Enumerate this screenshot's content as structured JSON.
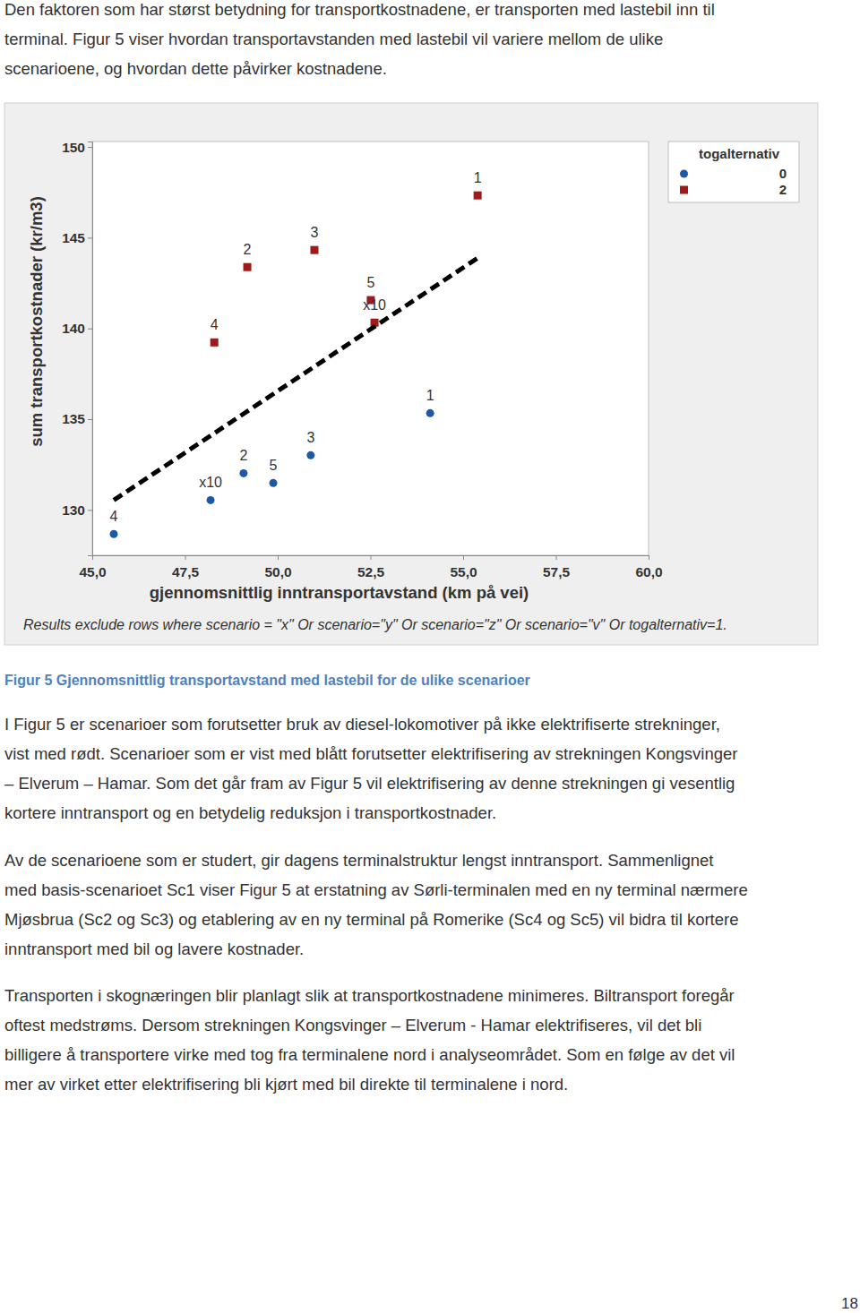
{
  "intro": {
    "lines": [
      "Den faktoren som har størst betydning for transportkostnadene, er transporten med lastebil inn til",
      "terminal. Figur 5 viser hvordan transportavstanden med lastebil vil variere mellom de ulike",
      "scenarioene, og hvordan dette påvirker kostnadene."
    ]
  },
  "chart_data": {
    "type": "scatter",
    "x_label": "gjennomsnittlig inntransportavstand (km på vei)",
    "y_label": "sum transportkostnader (kr/m3)",
    "note": "Results exclude rows where scenario = \"x\" Or scenario=\"y\" Or scenario=\"z\" Or scenario=\"v\" Or togalternativ=1.",
    "legend_title": "togalternativ",
    "legend": "top-right",
    "grid": false,
    "xlim": [
      45,
      60
    ],
    "xticks": [
      {
        "value": 45,
        "label": "45,0"
      },
      {
        "value": 47.5,
        "label": "47,5"
      },
      {
        "value": 50,
        "label": "50,0"
      },
      {
        "value": 52.5,
        "label": "52,5"
      },
      {
        "value": 55,
        "label": "55,0"
      },
      {
        "value": 57.5,
        "label": "57,5"
      },
      {
        "value": 60,
        "label": "60,0"
      }
    ],
    "ylim": [
      127.5,
      150.3
    ],
    "yticks": [
      130,
      135,
      140,
      145,
      150
    ],
    "series": [
      {
        "name": "0",
        "color": "#1d5aa3",
        "marker": "circle",
        "x": [
          45.58,
          48.19,
          49.08,
          49.88,
          50.89,
          54.11
        ],
        "values": [
          128.67,
          130.54,
          132.02,
          131.48,
          133.01,
          135.33
        ],
        "point_labels": [
          "4",
          "x10",
          "2",
          "5",
          "3",
          "1"
        ]
      },
      {
        "name": "2",
        "color": "#9e1b1b",
        "marker": "square",
        "x": [
          48.29,
          49.18,
          50.99,
          52.51,
          52.61,
          55.39
        ],
        "values": [
          139.23,
          143.38,
          144.32,
          141.56,
          140.32,
          147.33
        ],
        "point_labels": [
          "4",
          "2",
          "3",
          "5",
          "x10",
          "1"
        ]
      },
      {
        "type": "line",
        "line_style": "dashed",
        "color": "#000000",
        "x": [
          45.58,
          55.39
        ],
        "values": [
          130.54,
          143.88
        ]
      }
    ]
  },
  "caption": "Figur 5 Gjennomsnittlig transportavstand med lastebil for de ulike scenarioer",
  "body": [
    [
      "I Figur 5 er scenarioer som forutsetter bruk av diesel-lokomotiver på ikke elektrifiserte strekninger,",
      "vist med rødt. Scenarioer som er vist med blått forutsetter elektrifisering av strekningen Kongsvinger",
      "– Elverum – Hamar. Som det går fram av Figur 5 vil elektrifisering av denne strekningen gi vesentlig",
      "kortere inntransport og en betydelig reduksjon i transportkostnader."
    ],
    [
      "Av de scenarioene som er studert, gir dagens terminalstruktur lengst inntransport. Sammenlignet",
      "med basis-scenarioet Sc1 viser Figur 5 at erstatning av Sørli-terminalen med en ny terminal nærmere",
      "Mjøsbrua (Sc2 og Sc3) og etablering av en ny terminal på Romerike (Sc4 og Sc5) vil bidra til kortere",
      "inntransport med bil og lavere kostnader."
    ],
    [
      "Transporten i skognæringen blir planlagt slik at transportkostnadene minimeres. Biltransport foregår",
      "oftest medstrøms. Dersom strekningen Kongsvinger – Elverum - Hamar elektrifiseres, vil det bli",
      "billigere å transportere virke med tog fra terminalene nord i analyseområdet. Som en følge av det vil",
      "mer av virket etter elektrifisering bli kjørt med bil direkte til terminalene i nord."
    ]
  ],
  "page_number": 18
}
